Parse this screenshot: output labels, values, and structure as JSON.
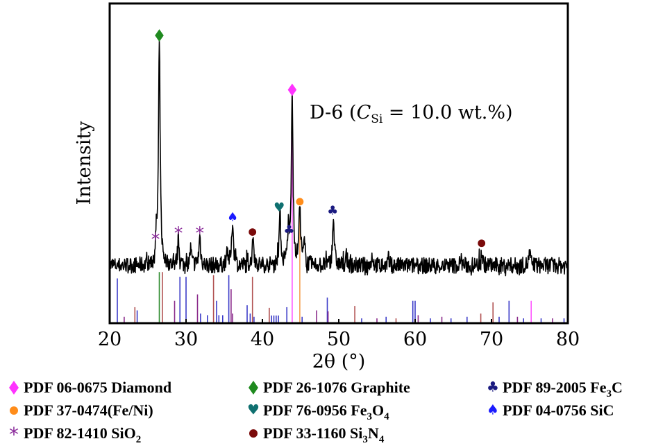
{
  "chart_data": {
    "type": "line",
    "title": "",
    "annotation": {
      "prefix": "D-6 (",
      "symbol": "C",
      "subscript": "Si",
      "suffix": " = 10.0 wt.%)"
    },
    "xlabel": "2θ (°)",
    "ylabel": "Intensity",
    "xlim": [
      20,
      80
    ],
    "ylim": [
      0,
      100
    ],
    "xticks": [
      20,
      30,
      40,
      50,
      60,
      70,
      80
    ],
    "grid": false,
    "pattern": {
      "baseline": 18,
      "noise": 1.6,
      "peaks": [
        {
          "x": 26.5,
          "h": 70
        },
        {
          "x": 43.9,
          "h": 53
        },
        {
          "x": 44.9,
          "h": 18
        },
        {
          "x": 42.3,
          "h": 16
        },
        {
          "x": 43.4,
          "h": 10
        },
        {
          "x": 49.3,
          "h": 15
        },
        {
          "x": 36.1,
          "h": 14
        },
        {
          "x": 38.8,
          "h": 9
        },
        {
          "x": 26.1,
          "h": 7
        },
        {
          "x": 29.0,
          "h": 8
        },
        {
          "x": 31.8,
          "h": 9
        },
        {
          "x": 30.6,
          "h": 5
        },
        {
          "x": 35.4,
          "h": 5
        },
        {
          "x": 68.7,
          "h": 4.5
        },
        {
          "x": 45.5,
          "h": 6
        },
        {
          "x": 51.0,
          "h": 3
        },
        {
          "x": 54.4,
          "h": 3
        },
        {
          "x": 56.5,
          "h": 2
        },
        {
          "x": 75.0,
          "h": 4
        },
        {
          "x": 66.0,
          "h": 2
        }
      ]
    },
    "markers": [
      {
        "phase": "Graphite",
        "x": 26.5,
        "y": 90
      },
      {
        "phase": "Diamond",
        "x": 43.9,
        "y": 73
      },
      {
        "phase": "Fe/Ni",
        "x": 44.9,
        "y": 38
      },
      {
        "phase": "Fe3O4",
        "x": 42.2,
        "y": 36
      },
      {
        "phase": "Fe3C",
        "x": 43.5,
        "y": 29
      },
      {
        "phase": "Fe3C",
        "x": 49.2,
        "y": 35
      },
      {
        "phase": "SiC",
        "x": 36.1,
        "y": 33
      },
      {
        "phase": "Si3N4",
        "x": 38.7,
        "y": 28.5
      },
      {
        "phase": "Si3N4",
        "x": 68.7,
        "y": 25
      },
      {
        "phase": "SiO2",
        "x": 26.0,
        "y": 26.5
      },
      {
        "phase": "SiO2",
        "x": 29.0,
        "y": 28.5
      },
      {
        "phase": "SiO2",
        "x": 31.8,
        "y": 28.5
      }
    ],
    "reference_sticks": [
      {
        "x": 21.0,
        "h": 14,
        "c": "#3b3bc8"
      },
      {
        "x": 21.9,
        "h": 2,
        "c": "#8a2a8a"
      },
      {
        "x": 23.3,
        "h": 5,
        "c": "#b05050"
      },
      {
        "x": 23.6,
        "h": 4,
        "c": "#3b3bc8"
      },
      {
        "x": 26.5,
        "h": 16,
        "c": "#2e8b2e"
      },
      {
        "x": 26.9,
        "h": 16,
        "c": "#b05050"
      },
      {
        "x": 28.5,
        "h": 7,
        "c": "#8a2a8a"
      },
      {
        "x": 29.2,
        "h": 14.5,
        "c": "#3b3bc8"
      },
      {
        "x": 30.0,
        "h": 14.5,
        "c": "#3b3bc8"
      },
      {
        "x": 31.5,
        "h": 9,
        "c": "#8a2a8a"
      },
      {
        "x": 31.9,
        "h": 3,
        "c": "#3b3bc8"
      },
      {
        "x": 32.8,
        "h": 2.5,
        "c": "#3b3bc8"
      },
      {
        "x": 33.6,
        "h": 15,
        "c": "#b05050"
      },
      {
        "x": 34.0,
        "h": 7,
        "c": "#3b3bc8"
      },
      {
        "x": 34.3,
        "h": 2.5,
        "c": "#3b3bc8"
      },
      {
        "x": 34.8,
        "h": 2.5,
        "c": "#3b3bc8"
      },
      {
        "x": 35.6,
        "h": 15,
        "c": "#3b3bc8"
      },
      {
        "x": 35.9,
        "h": 10.6,
        "c": "#8a2a8a"
      },
      {
        "x": 36.1,
        "h": 3,
        "c": "#8a2a8a"
      },
      {
        "x": 38.0,
        "h": 5.6,
        "c": "#3b3bc8"
      },
      {
        "x": 38.7,
        "h": 14.5,
        "c": "#b05050"
      },
      {
        "x": 38.4,
        "h": 3,
        "c": "#3b3bc8"
      },
      {
        "x": 38.9,
        "h": 2,
        "c": "#3b3bc8"
      },
      {
        "x": 40.9,
        "h": 4.8,
        "c": "#b05050"
      },
      {
        "x": 41.2,
        "h": 2.4,
        "c": "#3b3bc8"
      },
      {
        "x": 41.5,
        "h": 2.4,
        "c": "#3b3bc8"
      },
      {
        "x": 41.8,
        "h": 2.4,
        "c": "#3b3bc8"
      },
      {
        "x": 42.1,
        "h": 2.4,
        "c": "#3b3bc8"
      },
      {
        "x": 43.2,
        "h": 5,
        "c": "#3b3bc8"
      },
      {
        "x": 43.9,
        "h": 70,
        "c": "#ff55ff"
      },
      {
        "x": 44.9,
        "h": 36,
        "c": "#f5a050"
      },
      {
        "x": 45.2,
        "h": 2,
        "c": "#3b3bc8"
      },
      {
        "x": 47.1,
        "h": 4,
        "c": "#8a2a8a"
      },
      {
        "x": 48.5,
        "h": 8,
        "c": "#3b3bc8"
      },
      {
        "x": 48.6,
        "h": 3.7,
        "c": "#8a2a8a"
      },
      {
        "x": 52.1,
        "h": 5.4,
        "c": "#b05050"
      },
      {
        "x": 53.0,
        "h": 1.5,
        "c": "#3b3bc8"
      },
      {
        "x": 55.0,
        "h": 1.5,
        "c": "#8a2a8a"
      },
      {
        "x": 56.2,
        "h": 2,
        "c": "#3b3bc8"
      },
      {
        "x": 57.5,
        "h": 1.5,
        "c": "#b05050"
      },
      {
        "x": 59.7,
        "h": 7,
        "c": "#3b3bc8"
      },
      {
        "x": 60.0,
        "h": 7,
        "c": "#3b3bc8"
      },
      {
        "x": 60.4,
        "h": 2.5,
        "c": "#8a2a8a"
      },
      {
        "x": 62.0,
        "h": 1.5,
        "c": "#3b3bc8"
      },
      {
        "x": 63.5,
        "h": 2,
        "c": "#8a2a8a"
      },
      {
        "x": 64.7,
        "h": 1.5,
        "c": "#3b3bc8"
      },
      {
        "x": 66.8,
        "h": 2,
        "c": "#3b3bc8"
      },
      {
        "x": 68.6,
        "h": 3,
        "c": "#b05050"
      },
      {
        "x": 70.2,
        "h": 6.5,
        "c": "#b05050"
      },
      {
        "x": 71.0,
        "h": 2,
        "c": "#3b3bc8"
      },
      {
        "x": 72.3,
        "h": 7,
        "c": "#3b3bc8"
      },
      {
        "x": 73.4,
        "h": 2,
        "c": "#8a2a8a"
      },
      {
        "x": 74.2,
        "h": 1.5,
        "c": "#3b3bc8"
      },
      {
        "x": 75.2,
        "h": 7,
        "c": "#ff55ff"
      },
      {
        "x": 76.5,
        "h": 1.5,
        "c": "#3b3bc8"
      },
      {
        "x": 78.0,
        "h": 1.5,
        "c": "#8a2a8a"
      },
      {
        "x": 79.5,
        "h": 1.5,
        "c": "#3b3bc8"
      }
    ],
    "legend": [
      {
        "phase": "Diamond",
        "symbol": "diamond",
        "color": "#ff33ff",
        "label": "PDF 06-0675 Diamond"
      },
      {
        "phase": "Graphite",
        "symbol": "diamond",
        "color": "#1f8a1f",
        "label": "PDF 26-1076 Graphite"
      },
      {
        "phase": "Fe3C",
        "symbol": "club",
        "color": "#1a1a80",
        "label": "PDF 89-2005 Fe",
        "sub": "3",
        "tail": "C"
      },
      {
        "phase": "Fe/Ni",
        "symbol": "circle",
        "color": "#ff8c1a",
        "label": "PDF 37-0474(Fe/Ni)"
      },
      {
        "phase": "Fe3O4",
        "symbol": "heart",
        "color": "#0f7070",
        "label": "PDF 76-0956 Fe",
        "sub": "3",
        "tail": "O",
        "sub2": "4"
      },
      {
        "phase": "SiC",
        "symbol": "spade",
        "color": "#1a1aff",
        "label": "PDF 04-0756 SiC"
      },
      {
        "phase": "SiO2",
        "symbol": "asterisk",
        "color": "#8a2a9a",
        "label": "PDF 82-1410 SiO",
        "sub": "2"
      },
      {
        "phase": "Si3N4",
        "symbol": "circle",
        "color": "#7a0a0a",
        "label": "PDF 33-1160 Si",
        "sub": "3",
        "tail": "N",
        "sub2": "4"
      }
    ],
    "legend_placement": "bottom"
  }
}
